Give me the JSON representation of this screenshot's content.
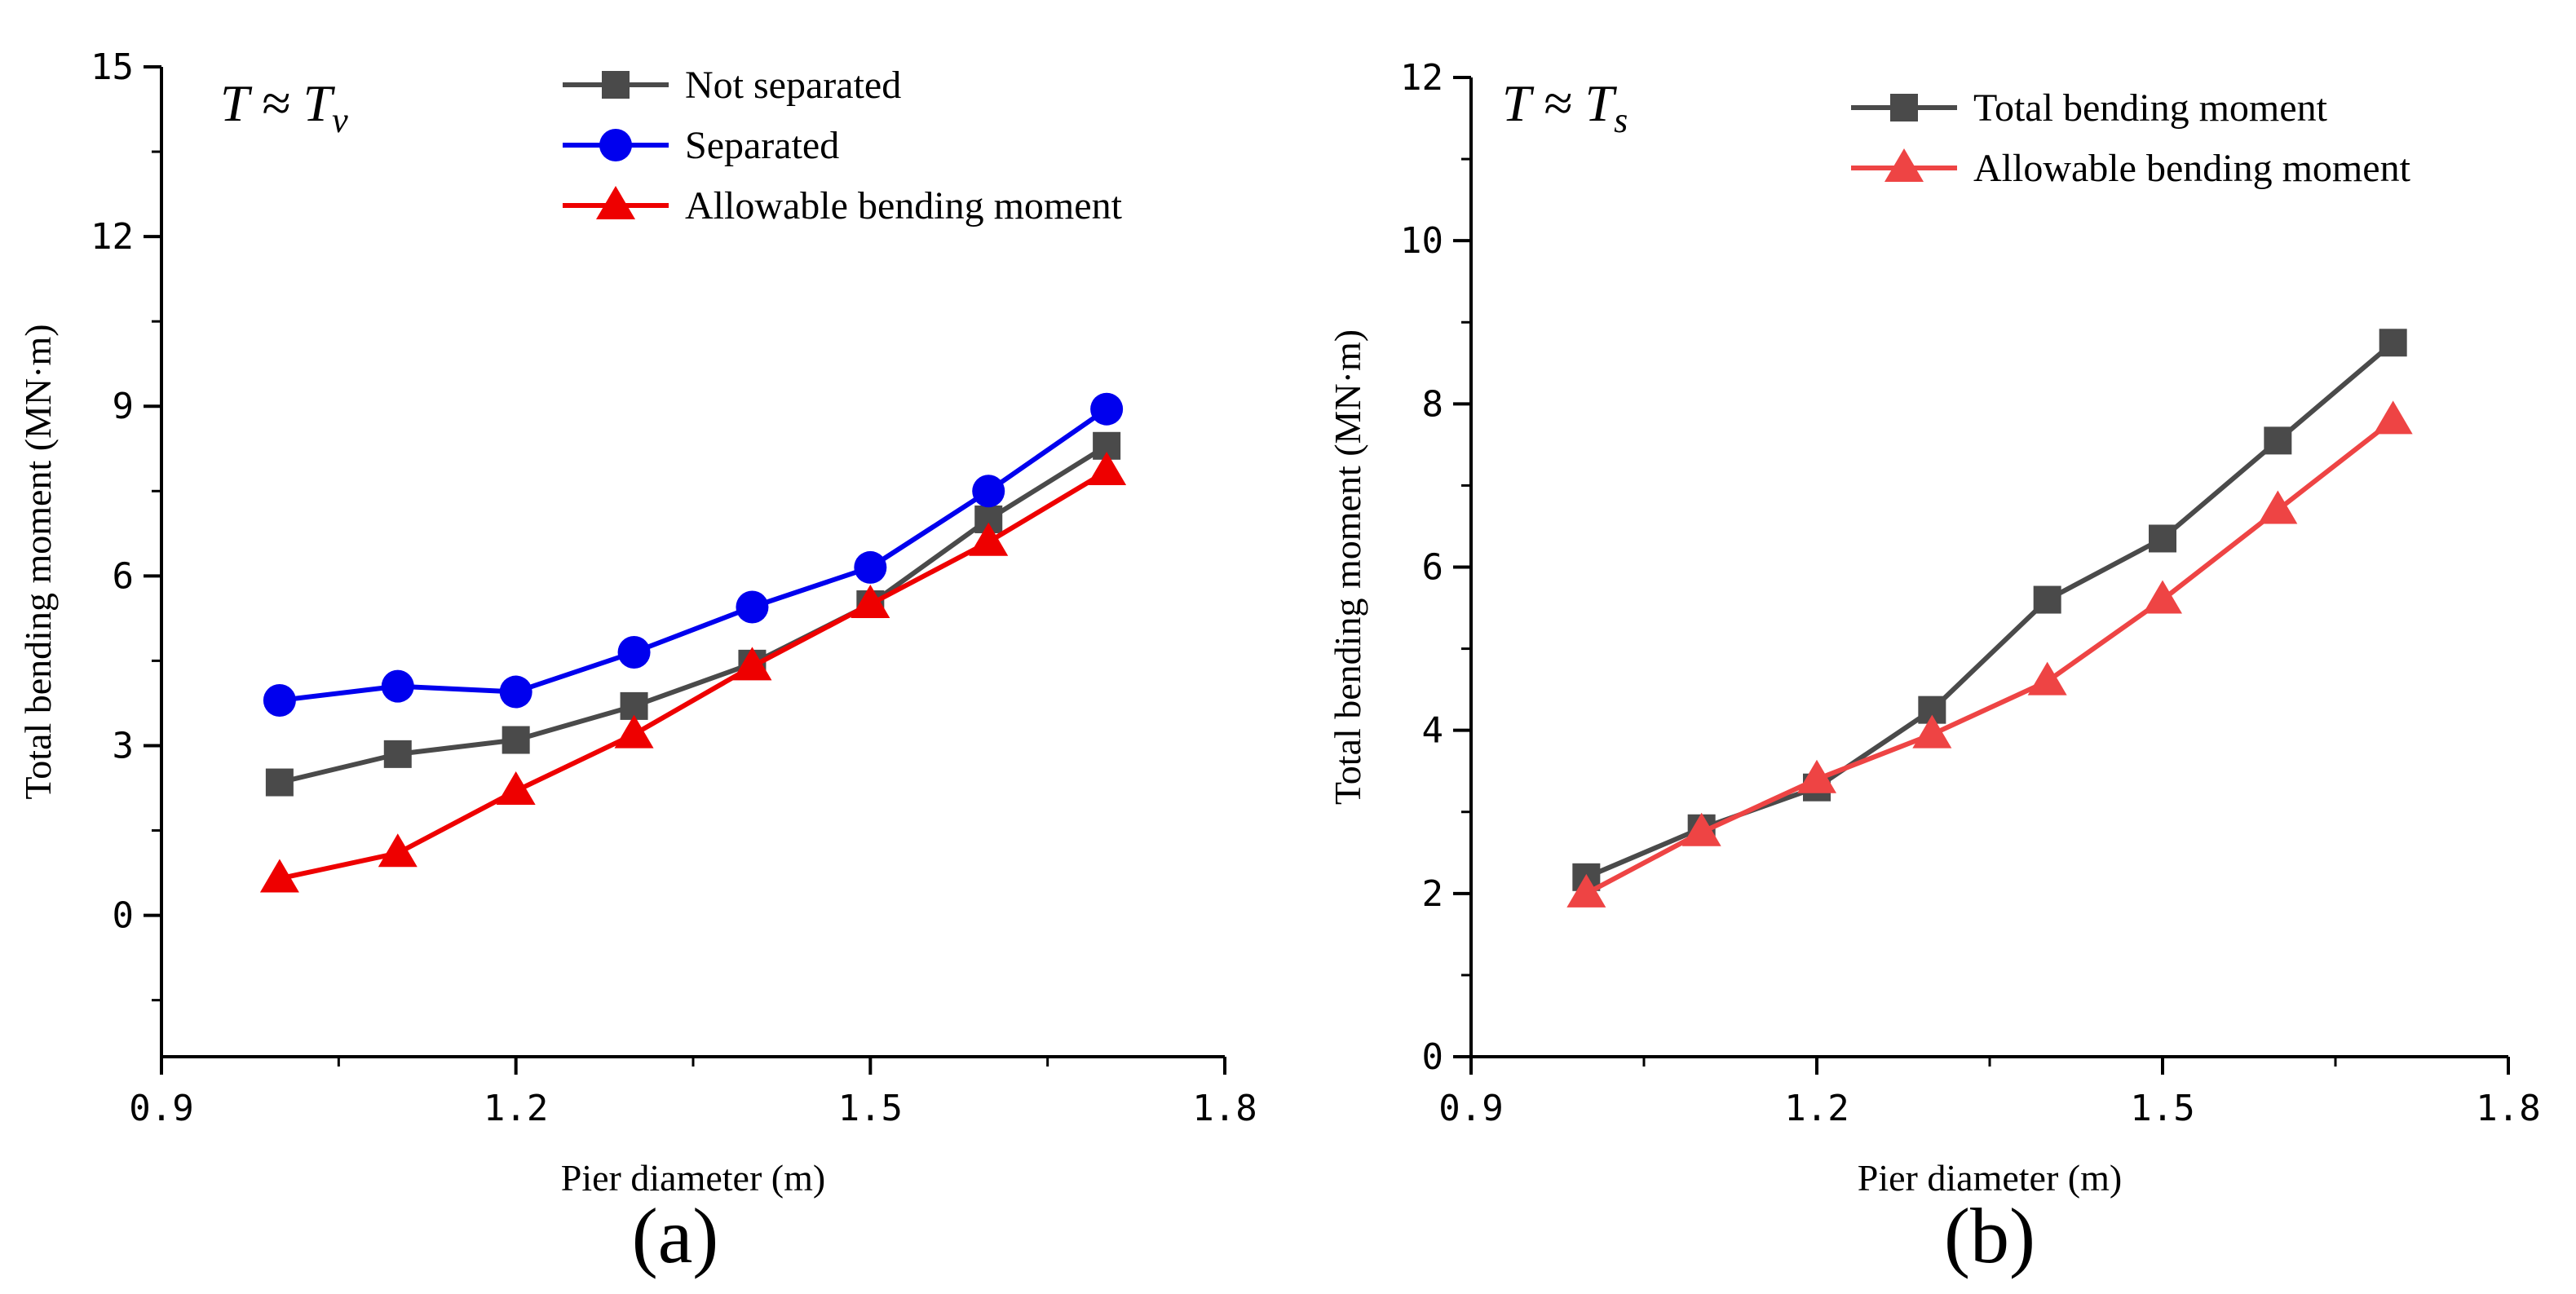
{
  "chart_data": [
    {
      "type": "line",
      "panel_label": "(a)",
      "annotation": {
        "main": "T ≈ T",
        "sub": "v"
      },
      "xlabel": "Pier diameter (m)",
      "ylabel": "Total bending moment (MN·m)",
      "xlim": [
        0.9,
        1.8
      ],
      "ylim": [
        -2.5,
        15
      ],
      "xticks": [
        0.9,
        1.2,
        1.5,
        1.8
      ],
      "xtick_labels": [
        "0.9",
        "1.2",
        "1.5",
        "1.8"
      ],
      "yticks": [
        0,
        3,
        6,
        9,
        12,
        15
      ],
      "ytick_labels": [
        "0",
        "3",
        "6",
        "9",
        "12",
        "15"
      ],
      "legend_position": "top-right",
      "x": [
        1.0,
        1.1,
        1.2,
        1.3,
        1.4,
        1.5,
        1.6,
        1.7
      ],
      "series": [
        {
          "name": "Not separated",
          "color": "#4a4a4a",
          "marker": "square",
          "values": [
            2.35,
            2.85,
            3.1,
            3.7,
            4.45,
            5.5,
            7.0,
            8.3
          ]
        },
        {
          "name": "Separated",
          "color": "#0000ee",
          "marker": "circle",
          "values": [
            3.8,
            4.05,
            3.95,
            4.65,
            5.45,
            6.15,
            7.5,
            8.95
          ]
        },
        {
          "name": "Allowable bending moment",
          "color": "#ee0000",
          "marker": "triangle",
          "values": [
            0.65,
            1.1,
            2.2,
            3.2,
            4.4,
            5.5,
            6.6,
            7.85
          ]
        }
      ]
    },
    {
      "type": "line",
      "panel_label": "(b)",
      "annotation": {
        "main": "T ≈ T",
        "sub": "s"
      },
      "xlabel": "Pier diameter (m)",
      "ylabel": "Total bending moment (MN·m)",
      "xlim": [
        0.9,
        1.8
      ],
      "ylim": [
        0,
        12
      ],
      "xticks": [
        0.9,
        1.2,
        1.5,
        1.8
      ],
      "xtick_labels": [
        "0.9",
        "1.2",
        "1.5",
        "1.8"
      ],
      "yticks": [
        0,
        2,
        4,
        6,
        8,
        10,
        12
      ],
      "ytick_labels": [
        "0",
        "2",
        "4",
        "6",
        "8",
        "10",
        "12"
      ],
      "legend_position": "top-right",
      "x": [
        1.0,
        1.1,
        1.2,
        1.3,
        1.4,
        1.5,
        1.6,
        1.7
      ],
      "series": [
        {
          "name": "Total bending moment",
          "color": "#4a4a4a",
          "marker": "square",
          "values": [
            2.2,
            2.8,
            3.3,
            4.25,
            5.6,
            6.35,
            7.55,
            8.75
          ]
        },
        {
          "name": "Allowable bending moment",
          "color": "#ee4444",
          "marker": "triangle",
          "values": [
            2.0,
            2.75,
            3.4,
            3.95,
            4.6,
            5.6,
            6.7,
            7.8
          ]
        }
      ]
    }
  ]
}
